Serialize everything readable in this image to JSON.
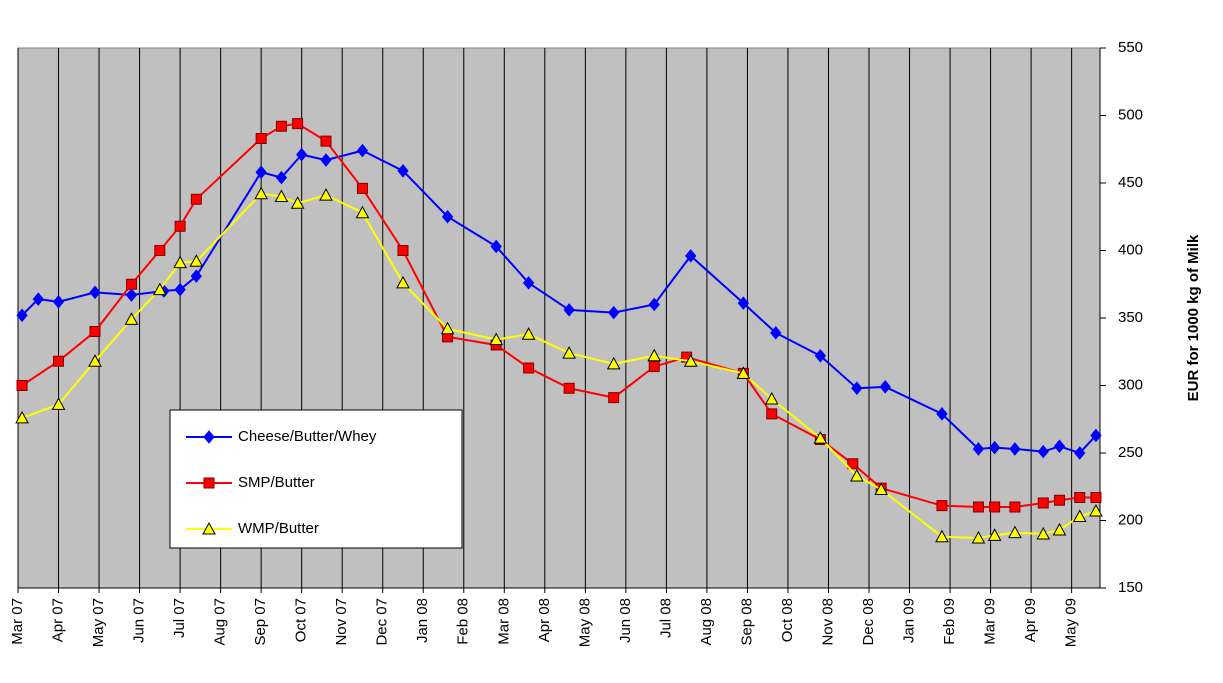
{
  "chart_data": {
    "type": "line",
    "y_axis_label": "EUR for 1000 kg of Milk",
    "xlim": [
      0,
      26.7
    ],
    "xticks": [
      {
        "value": 0,
        "label": "Mar 07"
      },
      {
        "value": 1,
        "label": "Apr 07"
      },
      {
        "value": 2,
        "label": "May 07"
      },
      {
        "value": 3,
        "label": "Jun 07"
      },
      {
        "value": 4,
        "label": "Jul 07"
      },
      {
        "value": 5,
        "label": "Aug 07"
      },
      {
        "value": 6,
        "label": "Sep 07"
      },
      {
        "value": 7,
        "label": "Oct 07"
      },
      {
        "value": 8,
        "label": "Nov 07"
      },
      {
        "value": 9,
        "label": "Dec 07"
      },
      {
        "value": 10,
        "label": "Jan 08"
      },
      {
        "value": 11,
        "label": "Feb 08"
      },
      {
        "value": 12,
        "label": "Mar 08"
      },
      {
        "value": 13,
        "label": "Apr 08"
      },
      {
        "value": 14,
        "label": "May 08"
      },
      {
        "value": 15,
        "label": "Jun 08"
      },
      {
        "value": 16,
        "label": "Jul 08"
      },
      {
        "value": 17,
        "label": "Aug 08"
      },
      {
        "value": 18,
        "label": "Sep 08"
      },
      {
        "value": 19,
        "label": "Oct 08"
      },
      {
        "value": 20,
        "label": "Nov 08"
      },
      {
        "value": 21,
        "label": "Dec 08"
      },
      {
        "value": 22,
        "label": "Jan 09"
      },
      {
        "value": 23,
        "label": "Feb 09"
      },
      {
        "value": 24,
        "label": "Mar 09"
      },
      {
        "value": 25,
        "label": "Apr 09"
      },
      {
        "value": 26,
        "label": "May 09"
      }
    ],
    "ylim": [
      150,
      550
    ],
    "yticks": [
      150,
      200,
      250,
      300,
      350,
      400,
      450,
      500,
      550
    ],
    "y_axis_side": "right",
    "grid": "x",
    "series": [
      {
        "name": "Cheese/Butter/Whey",
        "color": "#0000ff",
        "marker": "diamond",
        "x": [
          0.1,
          0.5,
          1.0,
          1.9,
          2.8,
          3.6,
          4.0,
          4.4,
          6.0,
          6.5,
          7.0,
          7.6,
          8.5,
          9.5,
          10.6,
          11.8,
          12.6,
          13.6,
          14.7,
          15.7,
          16.6,
          17.9,
          18.7,
          19.8,
          20.7,
          21.4,
          22.8,
          23.7,
          24.1,
          24.6,
          25.3,
          25.7,
          26.2,
          26.6
        ],
        "values": [
          352,
          364,
          362,
          369,
          367,
          370,
          371,
          381,
          458,
          454,
          471,
          467,
          474,
          459,
          425,
          403,
          376,
          356,
          354,
          360,
          396,
          361,
          339,
          322,
          298,
          299,
          279,
          253,
          254,
          253,
          251,
          255,
          250,
          263
        ]
      },
      {
        "name": "SMP/Butter",
        "color": "#ff0000",
        "marker": "square",
        "x": [
          0.1,
          1.0,
          1.9,
          2.8,
          3.5,
          4.0,
          4.4,
          6.0,
          6.5,
          6.9,
          7.6,
          8.5,
          9.5,
          10.6,
          11.8,
          12.6,
          13.6,
          14.7,
          15.7,
          16.5,
          17.9,
          18.6,
          19.8,
          20.6,
          21.3,
          22.8,
          23.7,
          24.1,
          24.6,
          25.3,
          25.7,
          26.2,
          26.6
        ],
        "values": [
          300,
          318,
          340,
          375,
          400,
          418,
          438,
          483,
          492,
          494,
          481,
          446,
          400,
          336,
          330,
          313,
          298,
          291,
          314,
          321,
          309,
          279,
          260,
          242,
          224,
          211,
          210,
          210,
          210,
          213,
          215,
          217,
          217
        ]
      },
      {
        "name": "WMP/Butter",
        "color": "#ffff00",
        "marker": "triangle",
        "x": [
          0.1,
          1.0,
          1.9,
          2.8,
          3.5,
          4.0,
          4.4,
          6.0,
          6.5,
          6.9,
          7.6,
          8.5,
          9.5,
          10.6,
          11.8,
          12.6,
          13.6,
          14.7,
          15.7,
          16.6,
          17.9,
          18.6,
          19.8,
          20.7,
          21.3,
          22.8,
          23.7,
          24.1,
          24.6,
          25.3,
          25.7,
          26.2,
          26.6
        ],
        "values": [
          276,
          286,
          318,
          349,
          371,
          391,
          392,
          442,
          440,
          435,
          441,
          428,
          376,
          342,
          334,
          338,
          324,
          316,
          322,
          318,
          309,
          290,
          261,
          233,
          223,
          188,
          187,
          189,
          191,
          190,
          193,
          203,
          207
        ]
      }
    ]
  }
}
